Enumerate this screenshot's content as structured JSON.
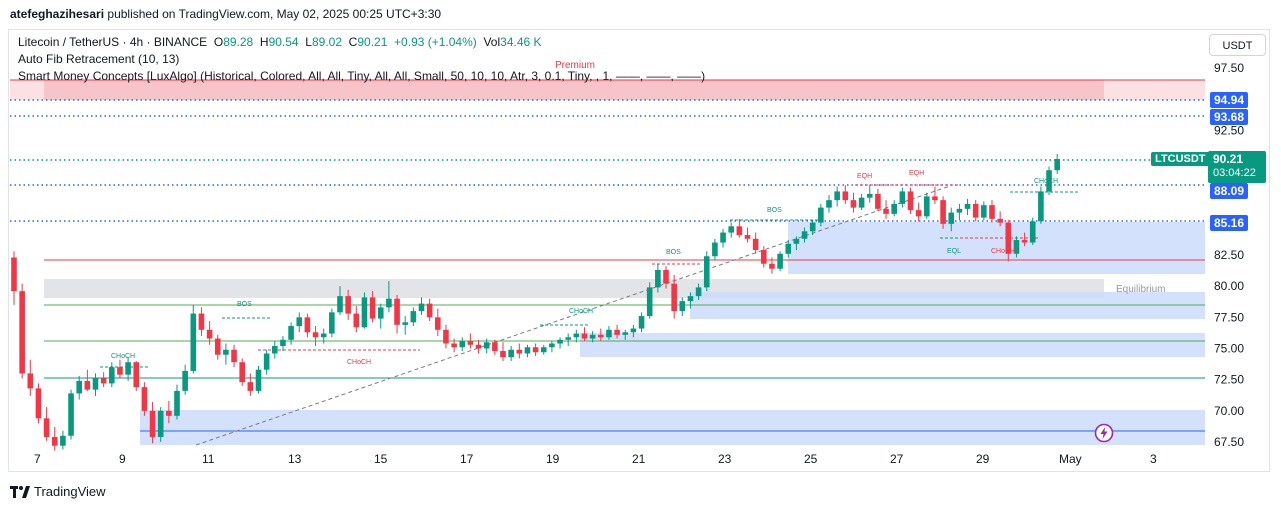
{
  "header": {
    "user": "atefeghazihesari",
    "published_on": "published on TradingView.com, May 02, 2025 00:25 UTC+3:30"
  },
  "legend": {
    "symbol": "Litecoin / TetherUS · 4h · BINANCE",
    "open_label": "O",
    "open": "89.28",
    "high_label": "H",
    "high": "90.54",
    "low_label": "L",
    "low": "89.02",
    "close_label": "C",
    "close": "90.21",
    "change": "+0.93 (+1.04%)",
    "vol_label": "Vol",
    "vol": "34.46 K",
    "indicator1": "Auto Fib Retracement (10, 13)",
    "indicator2": "Smart Money Concepts [LuxAlgo] (Historical, Colored, All, All, Tiny, All, All, Small, 50, 10, 10, Atr, 3, 0.1, Tiny, , 1, ——, ——, ——)"
  },
  "currency_button": "USDT",
  "price_axis": [
    "97.50",
    "92.50",
    "82.50",
    "80.00",
    "77.50",
    "75.00",
    "72.50",
    "70.00",
    "67.50"
  ],
  "time_axis": [
    "7",
    "9",
    "11",
    "13",
    "15",
    "17",
    "19",
    "21",
    "23",
    "25",
    "27",
    "29",
    "May",
    "3"
  ],
  "price_labels": {
    "level_1": "94.94",
    "level_2": "93.68",
    "level_3": "88.09",
    "level_4": "85.16",
    "symbol_tag": "LTCUSDT",
    "last_price": "90.21",
    "countdown": "03:04:22"
  },
  "annotations": {
    "premium": "Premium",
    "equilibrium": "Equilibrium",
    "choch": "CHoCH",
    "bos": "BOS",
    "eqh": "EQH",
    "eql": "EQL"
  },
  "footer": {
    "brand": "TradingView"
  },
  "colors": {
    "up": "#089981",
    "down": "#f23645",
    "accent": "#2962ff",
    "premium_zone": "#f7c5c9",
    "ob_zone": "#c9d9fb",
    "equilibrium_zone": "#e3e4e8"
  },
  "chart_data": {
    "type": "candlestick",
    "title": "Litecoin / TetherUS · 4h · BINANCE",
    "y_range": [
      67,
      99
    ],
    "candles": [
      {
        "o": 82.3,
        "h": 82.8,
        "l": 78.5,
        "c": 79.6
      },
      {
        "o": 79.6,
        "h": 80.2,
        "l": 72.6,
        "c": 73.0
      },
      {
        "o": 73.0,
        "h": 74.1,
        "l": 71.2,
        "c": 71.8
      },
      {
        "o": 71.8,
        "h": 72.2,
        "l": 69.0,
        "c": 69.4
      },
      {
        "o": 69.4,
        "h": 70.3,
        "l": 67.6,
        "c": 67.9
      },
      {
        "o": 67.9,
        "h": 68.7,
        "l": 66.8,
        "c": 67.2
      },
      {
        "o": 67.2,
        "h": 68.4,
        "l": 66.9,
        "c": 68.0
      },
      {
        "o": 68.0,
        "h": 71.7,
        "l": 67.7,
        "c": 71.4
      },
      {
        "o": 71.4,
        "h": 72.8,
        "l": 70.9,
        "c": 72.4
      },
      {
        "o": 72.4,
        "h": 73.3,
        "l": 71.6,
        "c": 71.7
      },
      {
        "o": 71.7,
        "h": 73.0,
        "l": 71.2,
        "c": 72.6
      },
      {
        "o": 72.6,
        "h": 73.1,
        "l": 71.9,
        "c": 72.2
      },
      {
        "o": 72.2,
        "h": 73.9,
        "l": 71.9,
        "c": 73.5
      },
      {
        "o": 73.5,
        "h": 74.1,
        "l": 72.6,
        "c": 72.9
      },
      {
        "o": 72.9,
        "h": 74.3,
        "l": 72.4,
        "c": 73.9
      },
      {
        "o": 73.9,
        "h": 74.0,
        "l": 71.6,
        "c": 71.9
      },
      {
        "o": 71.9,
        "h": 72.3,
        "l": 69.6,
        "c": 70.0
      },
      {
        "o": 70.0,
        "h": 70.7,
        "l": 67.4,
        "c": 67.9
      },
      {
        "o": 67.9,
        "h": 70.3,
        "l": 67.5,
        "c": 70.0
      },
      {
        "o": 70.0,
        "h": 70.8,
        "l": 69.0,
        "c": 69.6
      },
      {
        "o": 69.6,
        "h": 72.1,
        "l": 69.3,
        "c": 71.6
      },
      {
        "o": 71.6,
        "h": 73.7,
        "l": 71.3,
        "c": 73.2
      },
      {
        "o": 73.2,
        "h": 78.5,
        "l": 73.0,
        "c": 77.8
      },
      {
        "o": 77.8,
        "h": 78.3,
        "l": 76.0,
        "c": 76.5
      },
      {
        "o": 76.5,
        "h": 77.2,
        "l": 75.3,
        "c": 75.8
      },
      {
        "o": 75.8,
        "h": 76.1,
        "l": 74.1,
        "c": 74.5
      },
      {
        "o": 74.5,
        "h": 75.4,
        "l": 73.7,
        "c": 74.9
      },
      {
        "o": 74.9,
        "h": 75.3,
        "l": 73.5,
        "c": 73.9
      },
      {
        "o": 73.9,
        "h": 74.2,
        "l": 72.0,
        "c": 72.3
      },
      {
        "o": 72.3,
        "h": 73.0,
        "l": 71.2,
        "c": 71.6
      },
      {
        "o": 71.6,
        "h": 73.6,
        "l": 71.4,
        "c": 73.3
      },
      {
        "o": 73.3,
        "h": 74.9,
        "l": 72.9,
        "c": 74.6
      },
      {
        "o": 74.6,
        "h": 75.6,
        "l": 74.2,
        "c": 75.2
      },
      {
        "o": 75.2,
        "h": 76.0,
        "l": 74.8,
        "c": 75.7
      },
      {
        "o": 75.7,
        "h": 77.1,
        "l": 75.3,
        "c": 76.8
      },
      {
        "o": 76.8,
        "h": 77.9,
        "l": 76.3,
        "c": 77.5
      },
      {
        "o": 77.5,
        "h": 77.8,
        "l": 75.9,
        "c": 76.3
      },
      {
        "o": 76.3,
        "h": 76.8,
        "l": 75.2,
        "c": 75.9
      },
      {
        "o": 75.9,
        "h": 76.6,
        "l": 75.4,
        "c": 76.2
      },
      {
        "o": 76.2,
        "h": 78.2,
        "l": 75.9,
        "c": 77.9
      },
      {
        "o": 77.9,
        "h": 80.0,
        "l": 77.7,
        "c": 79.2
      },
      {
        "o": 79.2,
        "h": 79.7,
        "l": 77.3,
        "c": 77.8
      },
      {
        "o": 77.8,
        "h": 78.4,
        "l": 76.3,
        "c": 76.7
      },
      {
        "o": 76.7,
        "h": 79.5,
        "l": 76.6,
        "c": 79.1
      },
      {
        "o": 79.1,
        "h": 79.6,
        "l": 77.1,
        "c": 77.4
      },
      {
        "o": 77.4,
        "h": 78.6,
        "l": 76.6,
        "c": 78.3
      },
      {
        "o": 78.3,
        "h": 80.4,
        "l": 77.9,
        "c": 79.0
      },
      {
        "o": 79.0,
        "h": 79.3,
        "l": 76.2,
        "c": 76.9
      },
      {
        "o": 76.9,
        "h": 77.6,
        "l": 76.1,
        "c": 77.1
      },
      {
        "o": 77.1,
        "h": 78.3,
        "l": 76.8,
        "c": 78.0
      },
      {
        "o": 78.0,
        "h": 79.1,
        "l": 77.7,
        "c": 78.6
      },
      {
        "o": 78.6,
        "h": 79.0,
        "l": 77.2,
        "c": 77.5
      },
      {
        "o": 77.5,
        "h": 78.2,
        "l": 76.0,
        "c": 76.5
      },
      {
        "o": 76.5,
        "h": 76.9,
        "l": 75.0,
        "c": 75.4
      },
      {
        "o": 75.4,
        "h": 75.8,
        "l": 74.7,
        "c": 75.1
      },
      {
        "o": 75.1,
        "h": 75.9,
        "l": 74.8,
        "c": 75.6
      },
      {
        "o": 75.6,
        "h": 76.2,
        "l": 75.0,
        "c": 75.3
      },
      {
        "o": 75.3,
        "h": 75.7,
        "l": 74.6,
        "c": 75.0
      },
      {
        "o": 75.0,
        "h": 75.8,
        "l": 74.6,
        "c": 75.5
      },
      {
        "o": 75.5,
        "h": 75.7,
        "l": 74.5,
        "c": 74.8
      },
      {
        "o": 74.8,
        "h": 75.5,
        "l": 74.0,
        "c": 74.3
      },
      {
        "o": 74.3,
        "h": 75.2,
        "l": 74.0,
        "c": 74.9
      },
      {
        "o": 74.9,
        "h": 75.4,
        "l": 74.2,
        "c": 74.6
      },
      {
        "o": 74.6,
        "h": 75.3,
        "l": 74.3,
        "c": 75.1
      },
      {
        "o": 75.1,
        "h": 75.4,
        "l": 74.4,
        "c": 74.7
      },
      {
        "o": 74.7,
        "h": 75.3,
        "l": 74.5,
        "c": 75.1
      },
      {
        "o": 75.1,
        "h": 75.6,
        "l": 74.7,
        "c": 75.4
      },
      {
        "o": 75.4,
        "h": 75.9,
        "l": 75.0,
        "c": 75.7
      },
      {
        "o": 75.7,
        "h": 76.2,
        "l": 75.2,
        "c": 75.9
      },
      {
        "o": 75.9,
        "h": 76.5,
        "l": 75.5,
        "c": 76.2
      },
      {
        "o": 76.2,
        "h": 76.7,
        "l": 75.6,
        "c": 75.8
      },
      {
        "o": 75.8,
        "h": 76.4,
        "l": 75.5,
        "c": 76.1
      },
      {
        "o": 76.1,
        "h": 76.6,
        "l": 75.6,
        "c": 75.9
      },
      {
        "o": 75.9,
        "h": 76.8,
        "l": 75.7,
        "c": 76.5
      },
      {
        "o": 76.5,
        "h": 76.9,
        "l": 75.8,
        "c": 76.1
      },
      {
        "o": 76.1,
        "h": 76.5,
        "l": 75.7,
        "c": 76.3
      },
      {
        "o": 76.3,
        "h": 76.9,
        "l": 75.9,
        "c": 76.6
      },
      {
        "o": 76.6,
        "h": 77.9,
        "l": 76.3,
        "c": 77.6
      },
      {
        "o": 77.6,
        "h": 80.3,
        "l": 77.4,
        "c": 79.9
      },
      {
        "o": 79.9,
        "h": 81.8,
        "l": 79.5,
        "c": 81.3
      },
      {
        "o": 81.3,
        "h": 81.6,
        "l": 79.8,
        "c": 80.2
      },
      {
        "o": 80.2,
        "h": 80.9,
        "l": 77.4,
        "c": 78.0
      },
      {
        "o": 78.0,
        "h": 79.1,
        "l": 77.6,
        "c": 78.8
      },
      {
        "o": 78.8,
        "h": 79.5,
        "l": 78.2,
        "c": 79.2
      },
      {
        "o": 79.2,
        "h": 80.2,
        "l": 78.9,
        "c": 79.9
      },
      {
        "o": 79.9,
        "h": 82.8,
        "l": 79.6,
        "c": 82.4
      },
      {
        "o": 82.4,
        "h": 83.8,
        "l": 82.1,
        "c": 83.5
      },
      {
        "o": 83.5,
        "h": 84.6,
        "l": 83.1,
        "c": 84.3
      },
      {
        "o": 84.3,
        "h": 85.1,
        "l": 83.9,
        "c": 84.8
      },
      {
        "o": 84.8,
        "h": 85.4,
        "l": 83.9,
        "c": 84.1
      },
      {
        "o": 84.1,
        "h": 84.7,
        "l": 83.5,
        "c": 83.8
      },
      {
        "o": 83.8,
        "h": 84.3,
        "l": 82.6,
        "c": 82.9
      },
      {
        "o": 82.9,
        "h": 83.2,
        "l": 81.5,
        "c": 81.8
      },
      {
        "o": 81.8,
        "h": 82.3,
        "l": 81.0,
        "c": 81.4
      },
      {
        "o": 81.4,
        "h": 82.8,
        "l": 81.2,
        "c": 82.6
      },
      {
        "o": 82.6,
        "h": 83.7,
        "l": 82.3,
        "c": 83.4
      },
      {
        "o": 83.4,
        "h": 84.0,
        "l": 82.9,
        "c": 83.8
      },
      {
        "o": 83.8,
        "h": 84.7,
        "l": 83.5,
        "c": 84.4
      },
      {
        "o": 84.4,
        "h": 85.3,
        "l": 84.1,
        "c": 85.1
      },
      {
        "o": 85.1,
        "h": 86.6,
        "l": 84.8,
        "c": 86.3
      },
      {
        "o": 86.3,
        "h": 87.3,
        "l": 85.9,
        "c": 86.9
      },
      {
        "o": 86.9,
        "h": 88.0,
        "l": 86.4,
        "c": 87.6
      },
      {
        "o": 87.6,
        "h": 88.1,
        "l": 86.6,
        "c": 86.9
      },
      {
        "o": 86.9,
        "h": 87.5,
        "l": 85.9,
        "c": 86.3
      },
      {
        "o": 86.3,
        "h": 87.4,
        "l": 86.1,
        "c": 87.1
      },
      {
        "o": 87.1,
        "h": 88.1,
        "l": 86.7,
        "c": 87.4
      },
      {
        "o": 87.4,
        "h": 87.8,
        "l": 86.0,
        "c": 86.2
      },
      {
        "o": 86.2,
        "h": 86.9,
        "l": 85.4,
        "c": 85.8
      },
      {
        "o": 85.8,
        "h": 86.9,
        "l": 85.6,
        "c": 86.6
      },
      {
        "o": 86.6,
        "h": 87.9,
        "l": 86.3,
        "c": 87.6
      },
      {
        "o": 87.6,
        "h": 87.9,
        "l": 85.8,
        "c": 86.1
      },
      {
        "o": 86.1,
        "h": 86.7,
        "l": 85.2,
        "c": 85.6
      },
      {
        "o": 85.6,
        "h": 87.5,
        "l": 85.4,
        "c": 87.2
      },
      {
        "o": 87.2,
        "h": 88.0,
        "l": 86.6,
        "c": 86.9
      },
      {
        "o": 86.9,
        "h": 87.2,
        "l": 84.6,
        "c": 85.0
      },
      {
        "o": 85.0,
        "h": 86.3,
        "l": 84.4,
        "c": 85.9
      },
      {
        "o": 85.9,
        "h": 86.6,
        "l": 85.3,
        "c": 86.2
      },
      {
        "o": 86.2,
        "h": 87.0,
        "l": 85.7,
        "c": 86.6
      },
      {
        "o": 86.6,
        "h": 86.9,
        "l": 85.2,
        "c": 85.5
      },
      {
        "o": 85.5,
        "h": 86.8,
        "l": 85.3,
        "c": 86.5
      },
      {
        "o": 86.5,
        "h": 86.9,
        "l": 85.1,
        "c": 85.4
      },
      {
        "o": 85.4,
        "h": 86.0,
        "l": 84.8,
        "c": 85.1
      },
      {
        "o": 85.1,
        "h": 85.3,
        "l": 82.0,
        "c": 82.6
      },
      {
        "o": 82.6,
        "h": 84.0,
        "l": 82.3,
        "c": 83.7
      },
      {
        "o": 83.7,
        "h": 84.3,
        "l": 83.2,
        "c": 83.5
      },
      {
        "o": 83.5,
        "h": 85.5,
        "l": 83.3,
        "c": 85.2
      },
      {
        "o": 85.2,
        "h": 88.0,
        "l": 85.0,
        "c": 87.6
      },
      {
        "o": 87.6,
        "h": 89.6,
        "l": 87.3,
        "c": 89.3
      },
      {
        "o": 89.3,
        "h": 90.6,
        "l": 89.0,
        "c": 90.2
      }
    ],
    "horizontal_levels": [
      94.94,
      93.68,
      88.09,
      85.16,
      82.5,
      78.5,
      75.5,
      72.5,
      68.3
    ],
    "zones": [
      {
        "name": "Premium",
        "from": 95.3,
        "to": 96.8
      },
      {
        "name": "Equilibrium",
        "from": 79.4,
        "to": 80.6
      }
    ],
    "last_price": 90.21
  }
}
